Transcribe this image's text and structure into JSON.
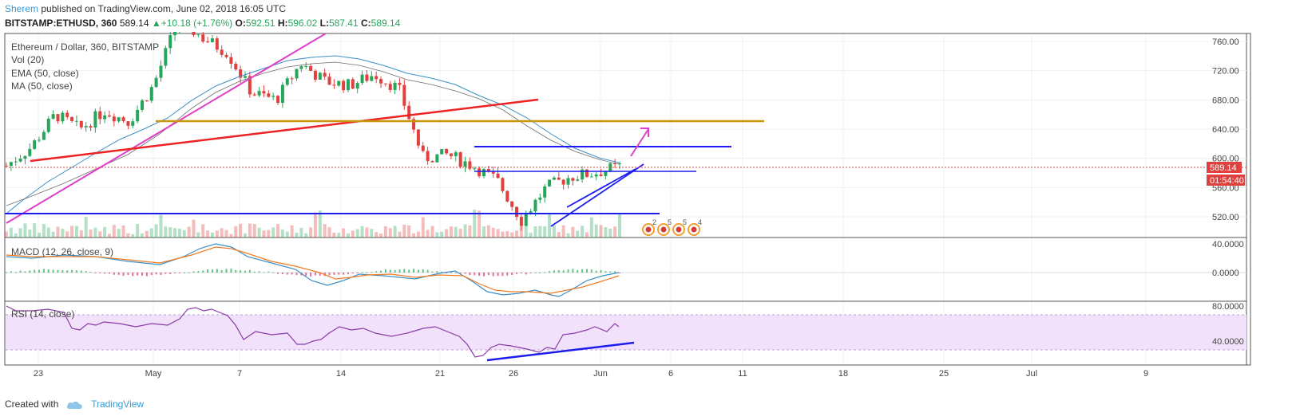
{
  "header": {
    "author": "Sherem",
    "published": "published on TradingView.com, June 02, 2018 16:05 UTC",
    "symbol": "BITSTAMP:ETHUSD, 360",
    "last": "589.14",
    "change": "+10.18 (+1.76%)",
    "o_label": "O:",
    "o": "592.51",
    "h_label": "H:",
    "h": "596.02",
    "l_label": "L:",
    "l": "587.41",
    "c_label": "C:",
    "c": "589.14"
  },
  "legend": {
    "title": "Ethereum / Dollar, 360, BITSTAMP",
    "vol": "Vol (20)",
    "ema": "EMA (50, close)",
    "ma": "MA (50, close)",
    "macd": "MACD (12, 26, close, 9)",
    "rsi": "RSI (14, close)"
  },
  "badges": {
    "price": "589.14",
    "countdown": "01:54:40"
  },
  "events": [
    "2",
    "5",
    "5",
    "4"
  ],
  "footer": {
    "created": "Created with",
    "brand": "TradingView"
  },
  "colors": {
    "up": "#26a65b",
    "down": "#e0413e",
    "ema": "#3b8fc7",
    "ma": "#6f6f6f",
    "trend_magenta": "#e040c8",
    "trend_red": "#ee2222",
    "level_gold": "#c9950d",
    "level_blue": "#1c1cf0",
    "rsi_band": "#f1e1fa"
  },
  "chart_data": [
    {
      "type": "candlestick",
      "title": "Ethereum / Dollar, 360, BITSTAMP",
      "x_ticks": [
        "23",
        "May",
        "7",
        "14",
        "21",
        "26",
        "Jun",
        "6",
        "11",
        "18",
        "25",
        "Jul",
        "9"
      ],
      "y_ticks": [
        "760.00",
        "720.00",
        "680.00",
        "640.00",
        "600.00",
        "560.00",
        "520.00"
      ],
      "ylim": [
        495,
        770
      ],
      "grid": true,
      "last_price": 589.14,
      "close_series": [
        {
          "x": "Apr 20",
          "y": 590
        },
        {
          "x": "Apr 23",
          "y": 615
        },
        {
          "x": "Apr 25",
          "y": 660
        },
        {
          "x": "Apr 27",
          "y": 640
        },
        {
          "x": "Apr 29",
          "y": 665
        },
        {
          "x": "May 1",
          "y": 650
        },
        {
          "x": "May 3",
          "y": 700
        },
        {
          "x": "May 5",
          "y": 790
        },
        {
          "x": "May 7",
          "y": 765
        },
        {
          "x": "May 9",
          "y": 745
        },
        {
          "x": "May 11",
          "y": 690
        },
        {
          "x": "May 13",
          "y": 680
        },
        {
          "x": "May 15",
          "y": 730
        },
        {
          "x": "May 17",
          "y": 705
        },
        {
          "x": "May 19",
          "y": 700
        },
        {
          "x": "May 21",
          "y": 715
        },
        {
          "x": "May 22",
          "y": 695
        },
        {
          "x": "May 23",
          "y": 600
        },
        {
          "x": "May 25",
          "y": 605
        },
        {
          "x": "May 27",
          "y": 590
        },
        {
          "x": "May 28",
          "y": 570
        },
        {
          "x": "May 29",
          "y": 515
        },
        {
          "x": "May 30",
          "y": 560
        },
        {
          "x": "May 31",
          "y": 575
        },
        {
          "x": "Jun 1",
          "y": 580
        },
        {
          "x": "Jun 2",
          "y": 589
        }
      ],
      "ema50_approx": [
        {
          "x": "Apr 20",
          "y": 520
        },
        {
          "x": "May 1",
          "y": 640
        },
        {
          "x": "May 9",
          "y": 735
        },
        {
          "x": "May 15",
          "y": 745
        },
        {
          "x": "May 21",
          "y": 713
        },
        {
          "x": "May 27",
          "y": 660
        },
        {
          "x": "Jun 2",
          "y": 600
        }
      ],
      "annotations": {
        "horizontal_levels": [
          650,
          614,
          583,
          525
        ],
        "trend_lines": [
          "magenta uptrend",
          "red trend line",
          "blue ascending support"
        ],
        "projection_arrow": "up toward ~645"
      }
    },
    {
      "type": "line",
      "title": "MACD (12, 26, close, 9)",
      "y_ticks": [
        "40.0000",
        "0.0000"
      ],
      "series": [
        {
          "name": "MACD",
          "points": [
            {
              "x": "Apr 20",
              "y": 22
            },
            {
              "x": "May 7",
              "y": 38
            },
            {
              "x": "May 14",
              "y": -12
            },
            {
              "x": "May 21",
              "y": 0
            },
            {
              "x": "May 26",
              "y": -30
            },
            {
              "x": "May 29",
              "y": -32
            },
            {
              "x": "Jun 2",
              "y": 6
            }
          ]
        },
        {
          "name": "Signal",
          "points": [
            {
              "x": "Apr 20",
              "y": 18
            },
            {
              "x": "May 7",
              "y": 32
            },
            {
              "x": "May 14",
              "y": -5
            },
            {
              "x": "May 21",
              "y": -2
            },
            {
              "x": "May 26",
              "y": -22
            },
            {
              "x": "May 29",
              "y": -30
            },
            {
              "x": "Jun 2",
              "y": -3
            }
          ]
        }
      ]
    },
    {
      "type": "line",
      "title": "RSI (14, close)",
      "y_ticks": [
        "80.0000",
        "40.0000"
      ],
      "band": [
        30,
        70
      ],
      "series": [
        {
          "name": "RSI",
          "points": [
            {
              "x": "Apr 20",
              "y": 80
            },
            {
              "x": "Apr 25",
              "y": 55
            },
            {
              "x": "May 5",
              "y": 82
            },
            {
              "x": "May 10",
              "y": 55
            },
            {
              "x": "May 14",
              "y": 42
            },
            {
              "x": "May 21",
              "y": 58
            },
            {
              "x": "May 24",
              "y": 20
            },
            {
              "x": "May 29",
              "y": 30
            },
            {
              "x": "Jun 2",
              "y": 58
            }
          ]
        }
      ]
    }
  ]
}
